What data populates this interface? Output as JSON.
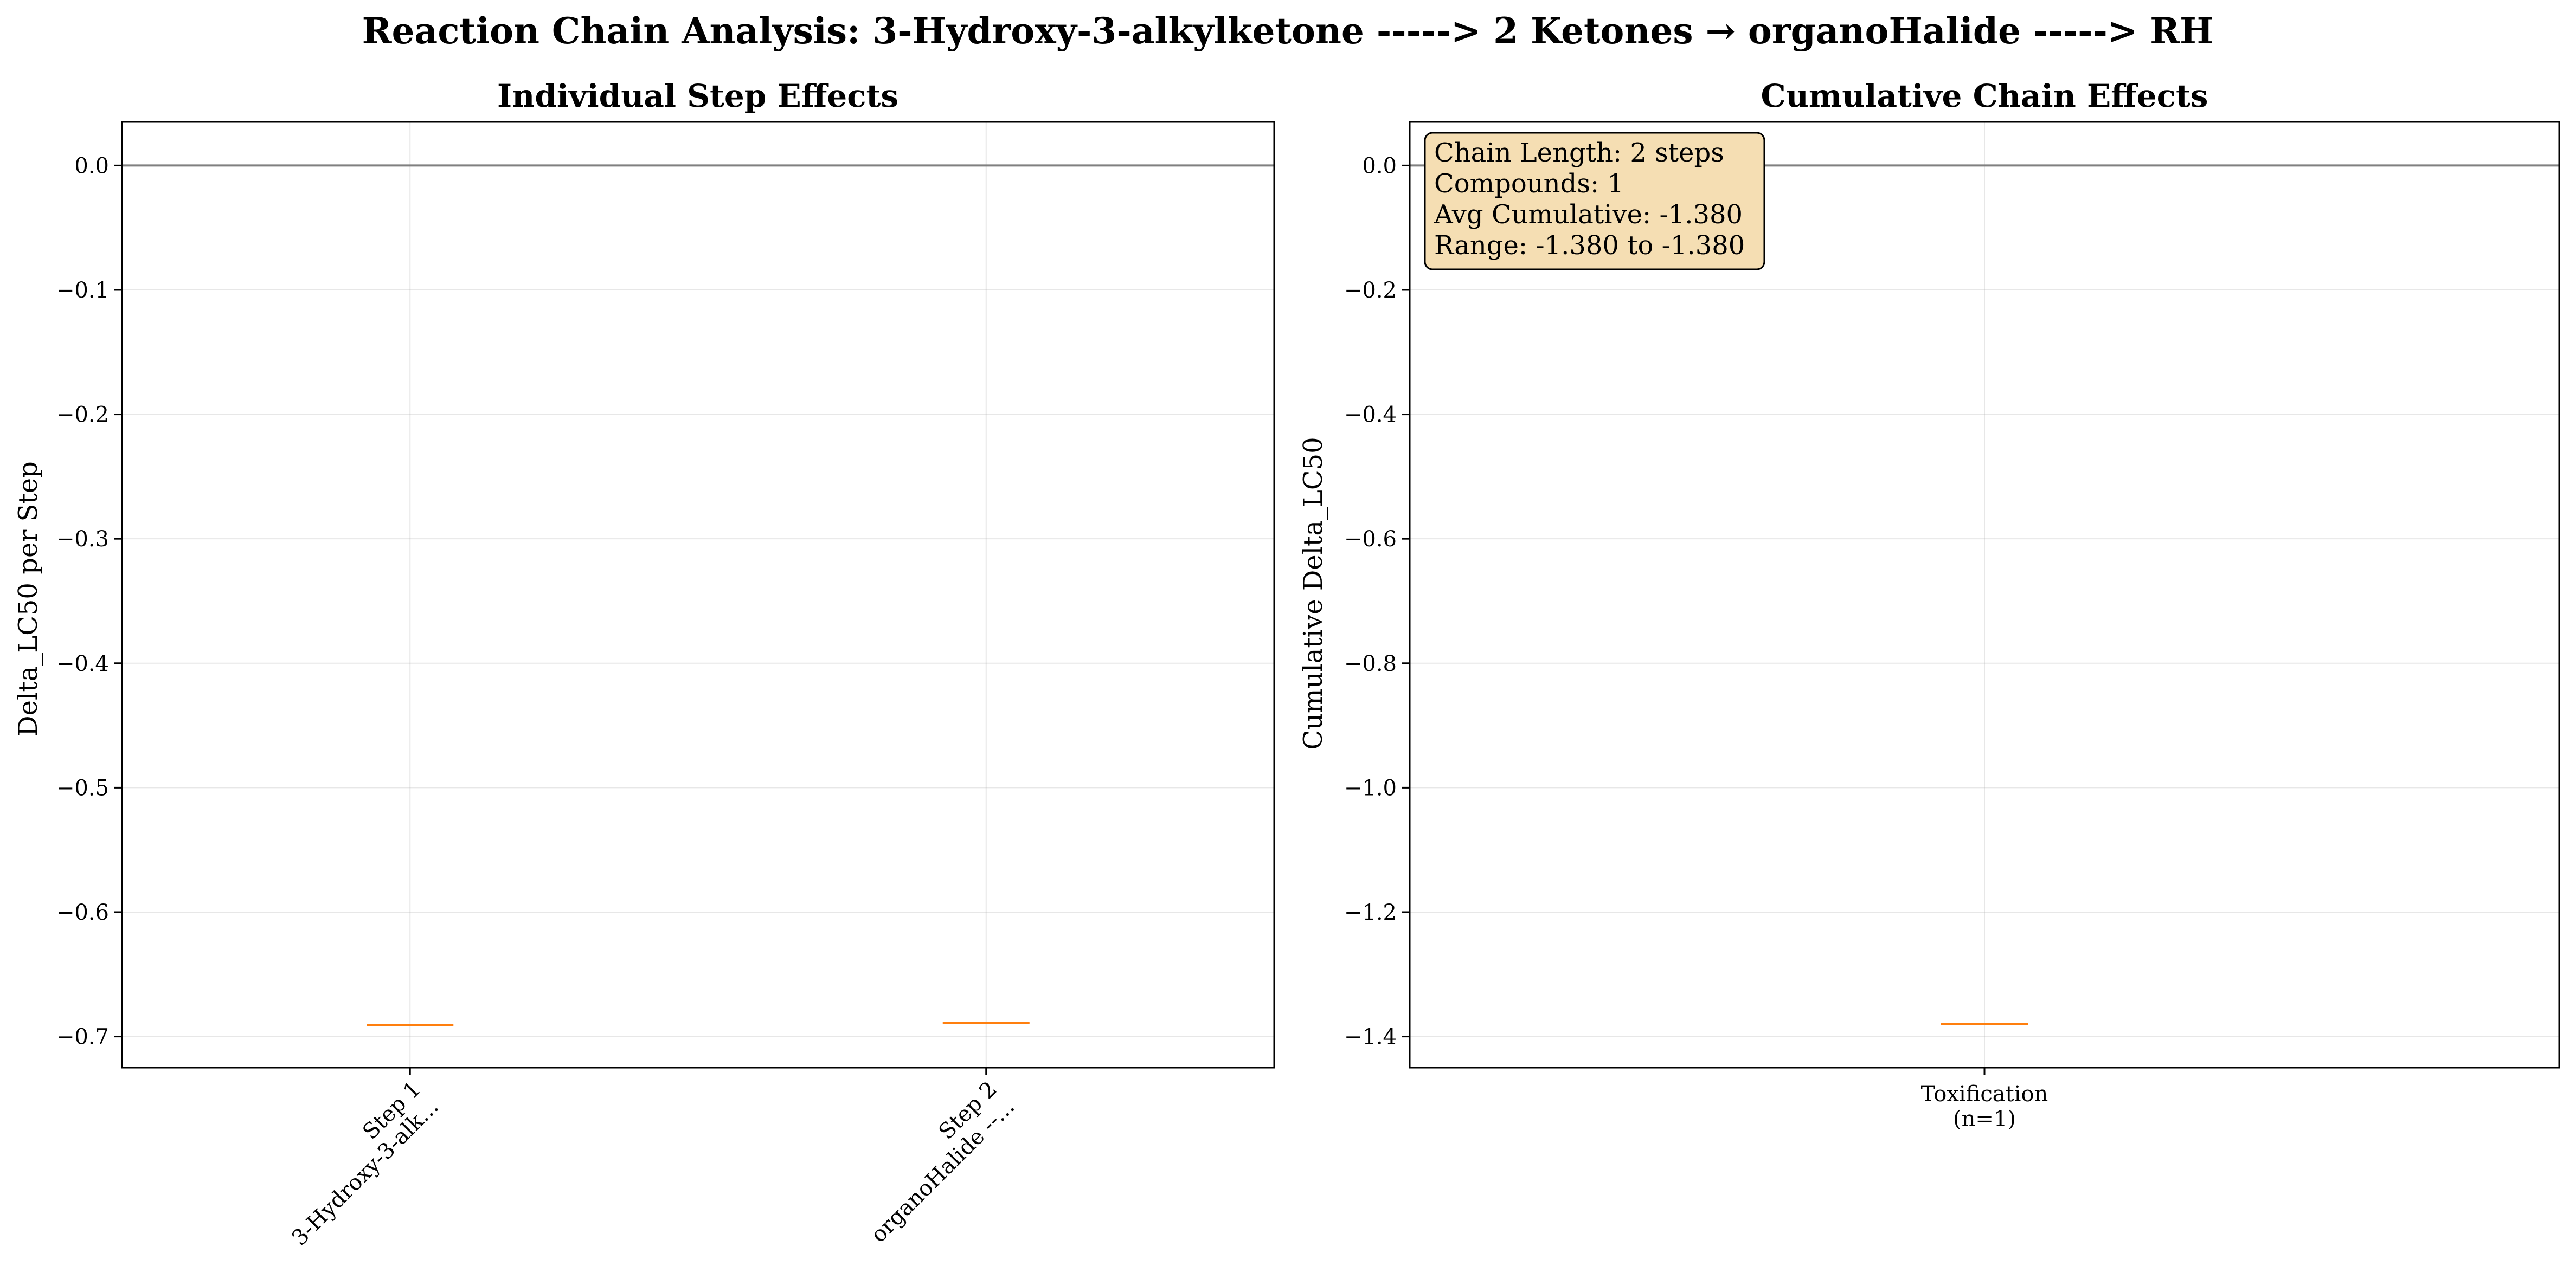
{
  "figure": {
    "title": "Reaction Chain Analysis: 3-Hydroxy-3-alkylketone -----> 2 Ketones → organoHalide -----> RH"
  },
  "chart_data": [
    {
      "type": "box",
      "title": "Individual Step Effects",
      "xlabel": "",
      "ylabel": "Delta_LC50 per Step",
      "ylim": [
        -0.725,
        0.035
      ],
      "yticks": [
        0.0,
        -0.1,
        -0.2,
        -0.3,
        -0.4,
        -0.5,
        -0.6,
        -0.7
      ],
      "ytick_labels": [
        "0.0",
        "−0.1",
        "−0.2",
        "−0.3",
        "−0.4",
        "−0.5",
        "−0.6",
        "−0.7"
      ],
      "reference_line": 0.0,
      "grid": true,
      "categories": [
        {
          "line1": "Step 1",
          "line2": "3-Hydroxy-3-alk..."
        },
        {
          "line1": "Step 2",
          "line2": "organoHalide --..."
        }
      ],
      "values": [
        -0.691,
        -0.689
      ]
    },
    {
      "type": "box",
      "title": "Cumulative Chain Effects",
      "xlabel": "",
      "ylabel": "Cumulative Delta_LC50",
      "ylim": [
        -1.45,
        0.07
      ],
      "yticks": [
        0.0,
        -0.2,
        -0.4,
        -0.6,
        -0.8,
        -1.0,
        -1.2,
        -1.4
      ],
      "ytick_labels": [
        "0.0",
        "−0.2",
        "−0.4",
        "−0.6",
        "−0.8",
        "−1.0",
        "−1.2",
        "−1.4"
      ],
      "reference_line": 0.0,
      "grid": true,
      "categories": [
        {
          "line1": "Toxification",
          "line2": "(n=1)"
        }
      ],
      "values": [
        -1.38
      ],
      "stats": [
        "Chain Length: 2 steps",
        "Compounds: 1",
        "Avg Cumulative: -1.380",
        "Range: -1.380 to -1.380"
      ]
    }
  ],
  "colors": {
    "median": "#ff7f0e",
    "reference_line": "#808080",
    "stats_box": "#f5deb3"
  }
}
